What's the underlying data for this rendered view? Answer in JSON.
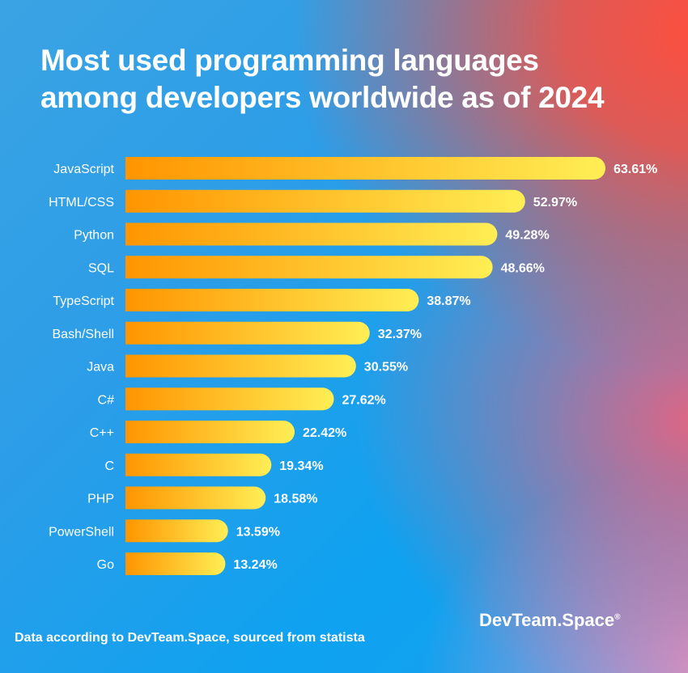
{
  "chart_data": {
    "type": "bar",
    "orientation": "horizontal",
    "title": "Most used programming languages among developers worldwide as of 2024",
    "categories": [
      "JavaScript",
      "HTML/CSS",
      "Python",
      "SQL",
      "TypeScript",
      "Bash/Shell",
      "Java",
      "C#",
      "C++",
      "C",
      "PHP",
      "PowerShell",
      "Go"
    ],
    "values": [
      63.61,
      52.97,
      49.28,
      48.66,
      38.87,
      32.37,
      30.55,
      27.62,
      22.42,
      19.34,
      18.58,
      13.59,
      13.24
    ],
    "value_labels": [
      "63.61%",
      "52.97%",
      "49.28%",
      "48.66%",
      "38.87%",
      "32.37%",
      "30.55%",
      "27.62%",
      "22.42%",
      "19.34%",
      "18.58%",
      "13.59%",
      "13.24%"
    ],
    "xlim": [
      0,
      64
    ],
    "grid": false,
    "bar_gradient": [
      "#ff9500",
      "#ffee55"
    ]
  },
  "title_lines": [
    "Most used programming languages",
    "among developers worldwide as of 2024"
  ],
  "footer": {
    "source": "Data according to DevTeam.Space, sourced from statista",
    "logo": "DevTeam.Space",
    "logo_mark": "®"
  }
}
